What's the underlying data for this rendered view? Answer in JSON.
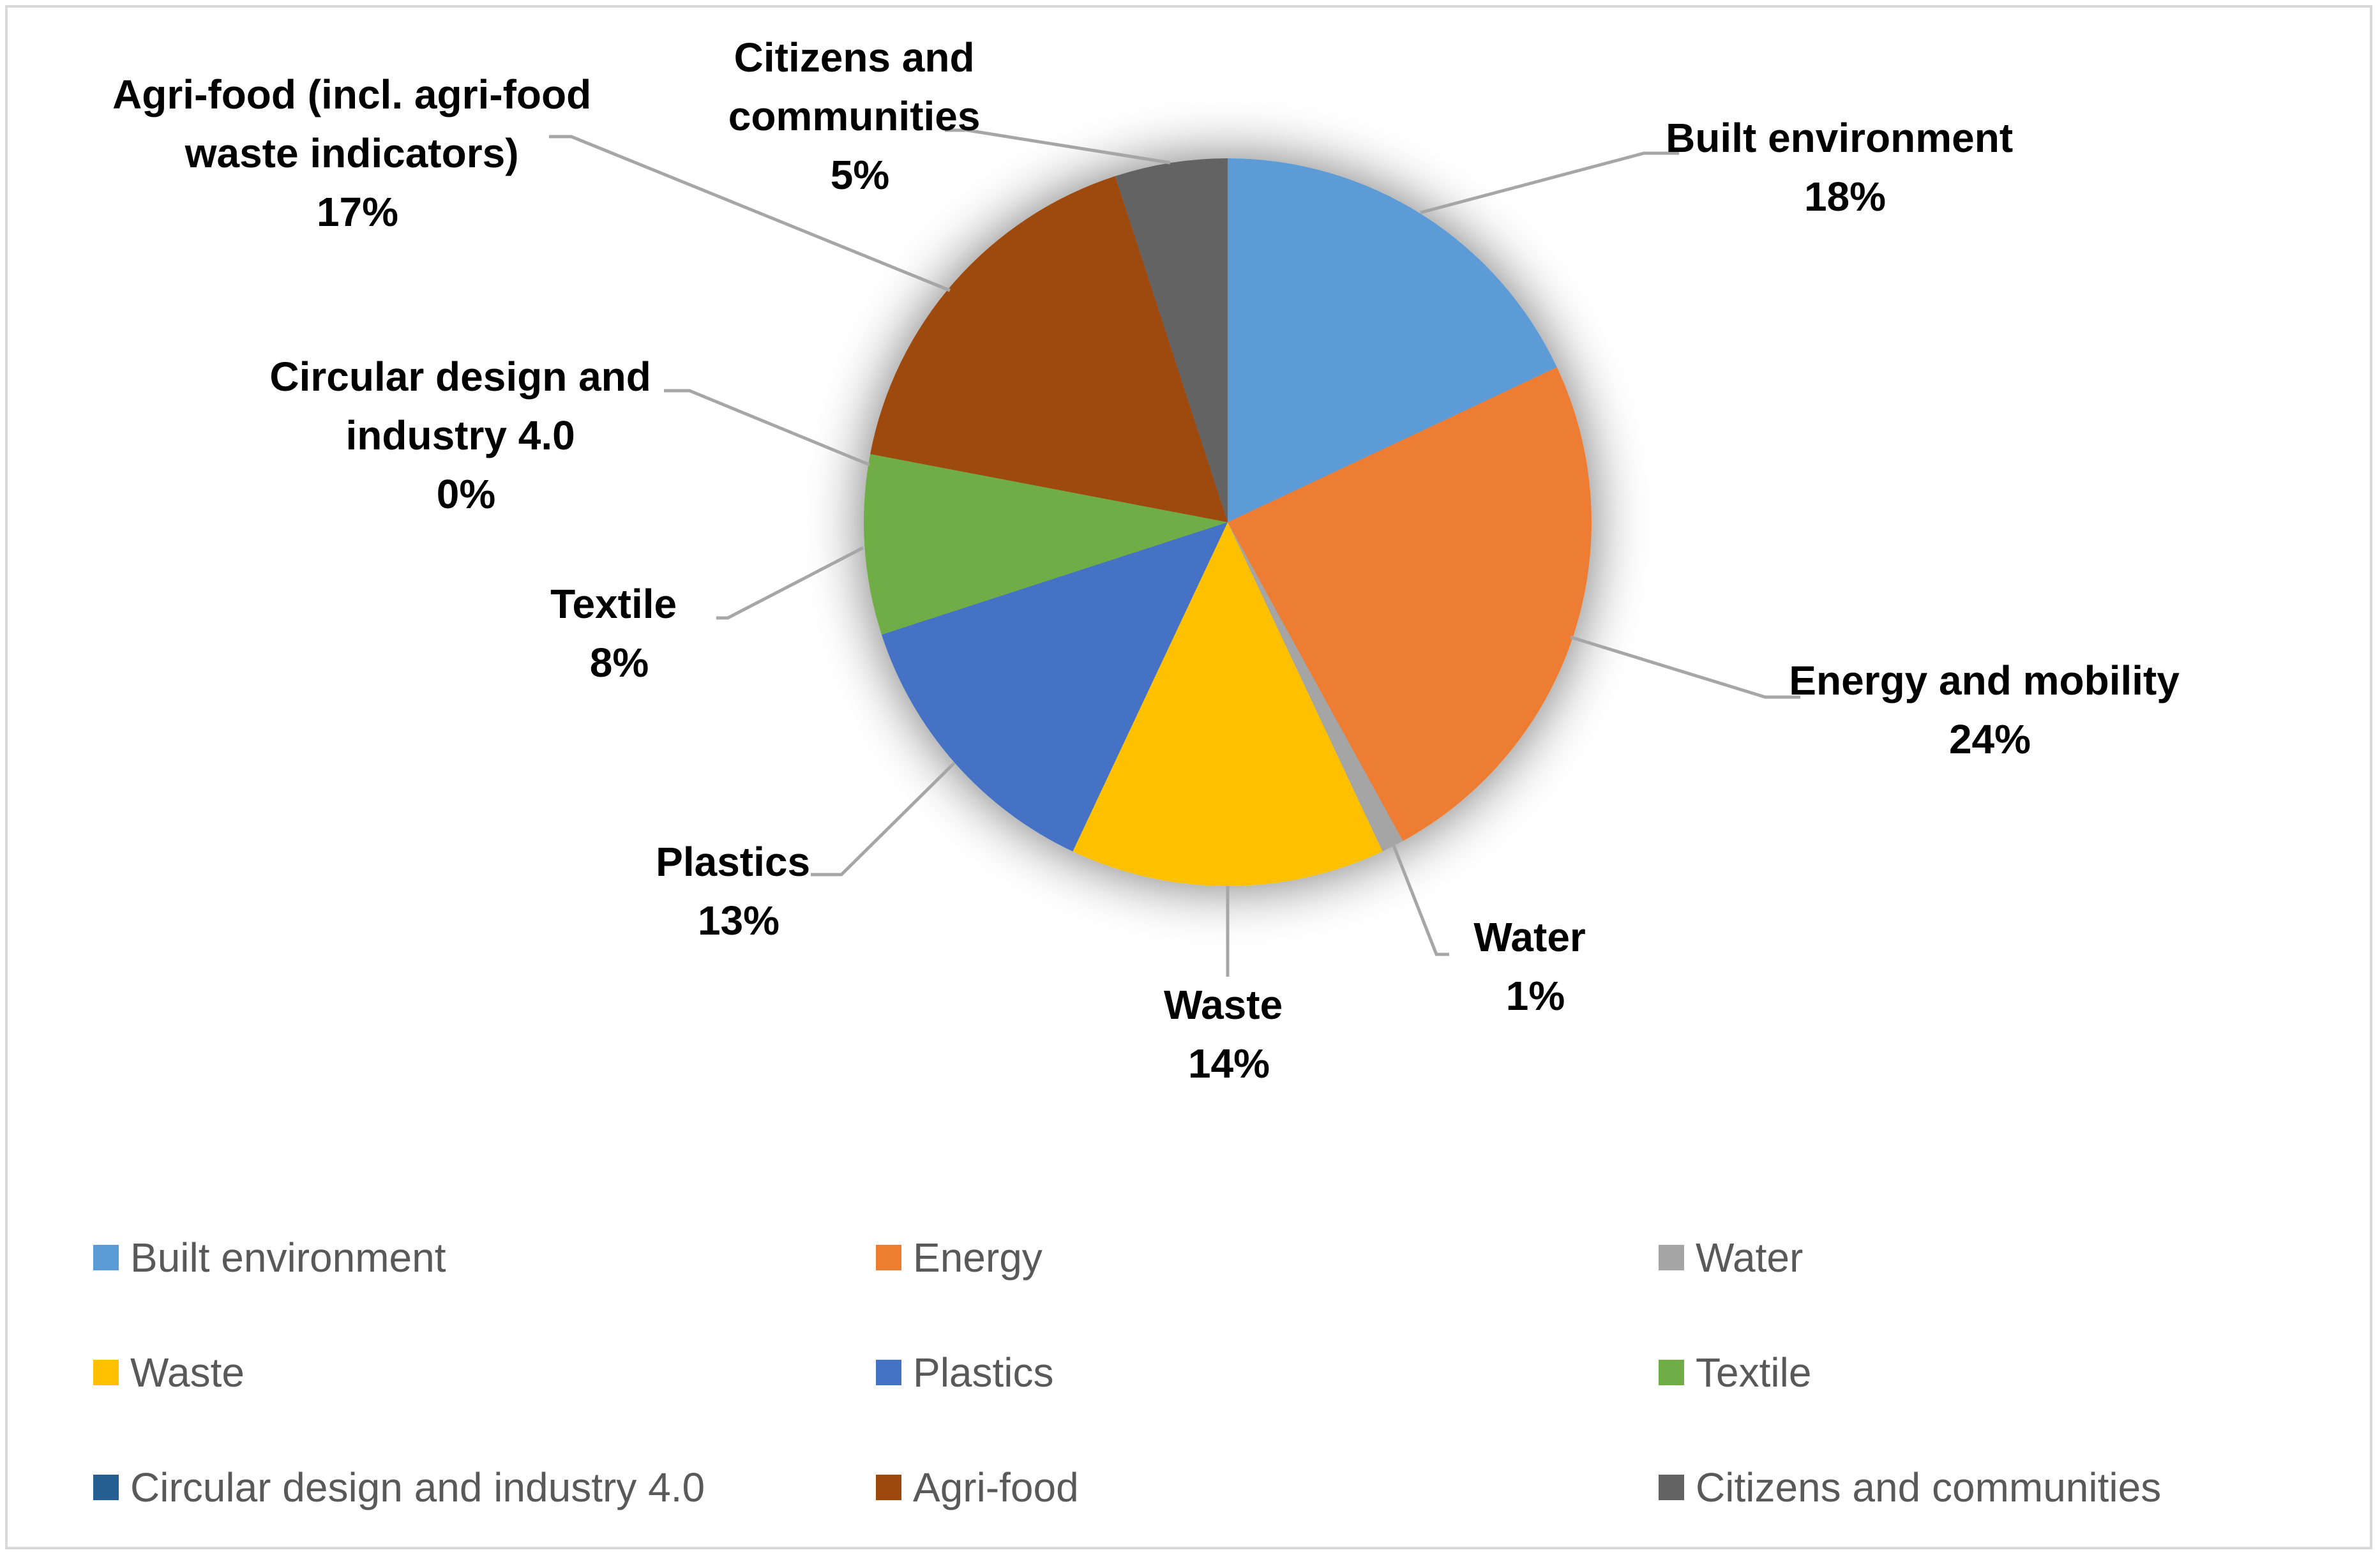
{
  "chart_data": {
    "type": "pie",
    "title": "",
    "slices": [
      {
        "key": "built",
        "label": "Built environment",
        "legend": "Built environment",
        "value": 18,
        "value_label": "18%",
        "color": "#5b9bd5"
      },
      {
        "key": "energy",
        "label": "Energy and mobility",
        "legend": "Energy",
        "value": 24,
        "value_label": "24%",
        "color": "#ed7d31"
      },
      {
        "key": "water",
        "label": "Water",
        "legend": "Water",
        "value": 1,
        "value_label": "1%",
        "color": "#a5a5a5"
      },
      {
        "key": "waste",
        "label": "Waste",
        "legend": "Waste",
        "value": 14,
        "value_label": "14%",
        "color": "#ffc000"
      },
      {
        "key": "plastics",
        "label": "Plastics",
        "legend": "Plastics",
        "value": 13,
        "value_label": "13%",
        "color": "#4472c4"
      },
      {
        "key": "textile",
        "label": "Textile",
        "legend": "Textile",
        "value": 8,
        "value_label": "8%",
        "color": "#70ad47"
      },
      {
        "key": "circular",
        "label": "Circular design and industry 4.0",
        "legend": "Circular design and industry 4.0",
        "value": 0,
        "value_label": "0%",
        "color": "#255e91"
      },
      {
        "key": "agri",
        "label": "Agri-food (incl. agri-food waste indicators)",
        "legend": "Agri-food",
        "value": 17,
        "value_label": "17%",
        "color": "#9e480e"
      },
      {
        "key": "citizens",
        "label": "Citizens and communities",
        "legend": "Citizens and communities",
        "value": 5,
        "value_label": "5%",
        "color": "#636363"
      }
    ],
    "legend_position": "bottom"
  }
}
